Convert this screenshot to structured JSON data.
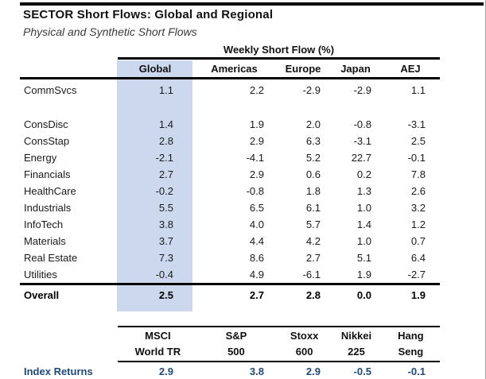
{
  "chart_data": {
    "type": "table",
    "title": "SECTOR Short Flows: Global and Regional",
    "subtitle": "Physical and Synthetic Short Flows",
    "group_header": "Weekly Short Flow (%)",
    "columns": [
      "Global",
      "Americas",
      "Europe",
      "Japan",
      "AEJ"
    ],
    "rows": [
      {
        "name": "CommSvcs",
        "values": [
          "1.1",
          "2.2",
          "-2.9",
          "-2.9",
          "1.1"
        ]
      },
      {
        "name": "ConsDisc",
        "values": [
          "1.4",
          "1.9",
          "2.0",
          "-0.8",
          "-3.1"
        ]
      },
      {
        "name": "ConsStap",
        "values": [
          "2.8",
          "2.9",
          "6.3",
          "-3.1",
          "2.5"
        ]
      },
      {
        "name": "Energy",
        "values": [
          "-2.1",
          "-4.1",
          "5.2",
          "22.7",
          "-0.1"
        ]
      },
      {
        "name": "Financials",
        "values": [
          "2.7",
          "2.9",
          "0.6",
          "0.2",
          "7.8"
        ]
      },
      {
        "name": "HealthCare",
        "values": [
          "-0.2",
          "-0.8",
          "1.8",
          "1.3",
          "2.6"
        ]
      },
      {
        "name": "Industrials",
        "values": [
          "5.5",
          "6.5",
          "6.1",
          "1.0",
          "3.2"
        ]
      },
      {
        "name": "InfoTech",
        "values": [
          "3.8",
          "4.0",
          "5.7",
          "1.4",
          "1.2"
        ]
      },
      {
        "name": "Materials",
        "values": [
          "3.7",
          "4.4",
          "4.2",
          "1.0",
          "0.7"
        ]
      },
      {
        "name": "Real Estate",
        "values": [
          "7.3",
          "8.6",
          "2.7",
          "5.1",
          "6.4"
        ]
      },
      {
        "name": "Utilities",
        "values": [
          "-0.4",
          "4.9",
          "-6.1",
          "1.9",
          "-2.7"
        ]
      }
    ],
    "overall": {
      "name": "Overall",
      "values": [
        "2.5",
        "2.7",
        "2.8",
        "0.0",
        "1.9"
      ]
    },
    "index_table": {
      "columns": [
        [
          "MSCI",
          "World TR"
        ],
        [
          "S&P",
          "500"
        ],
        [
          "Stoxx",
          "600"
        ],
        [
          "Nikkei",
          "225"
        ],
        [
          "Hang",
          "Seng"
        ]
      ],
      "label": "Index Returns",
      "values": [
        "2.9",
        "3.8",
        "2.9",
        "-0.5",
        "-0.1"
      ]
    },
    "colors": {
      "highlight_band": "#cbd8ee",
      "index_accent": "#1f497d",
      "rule": "#000000"
    }
  }
}
